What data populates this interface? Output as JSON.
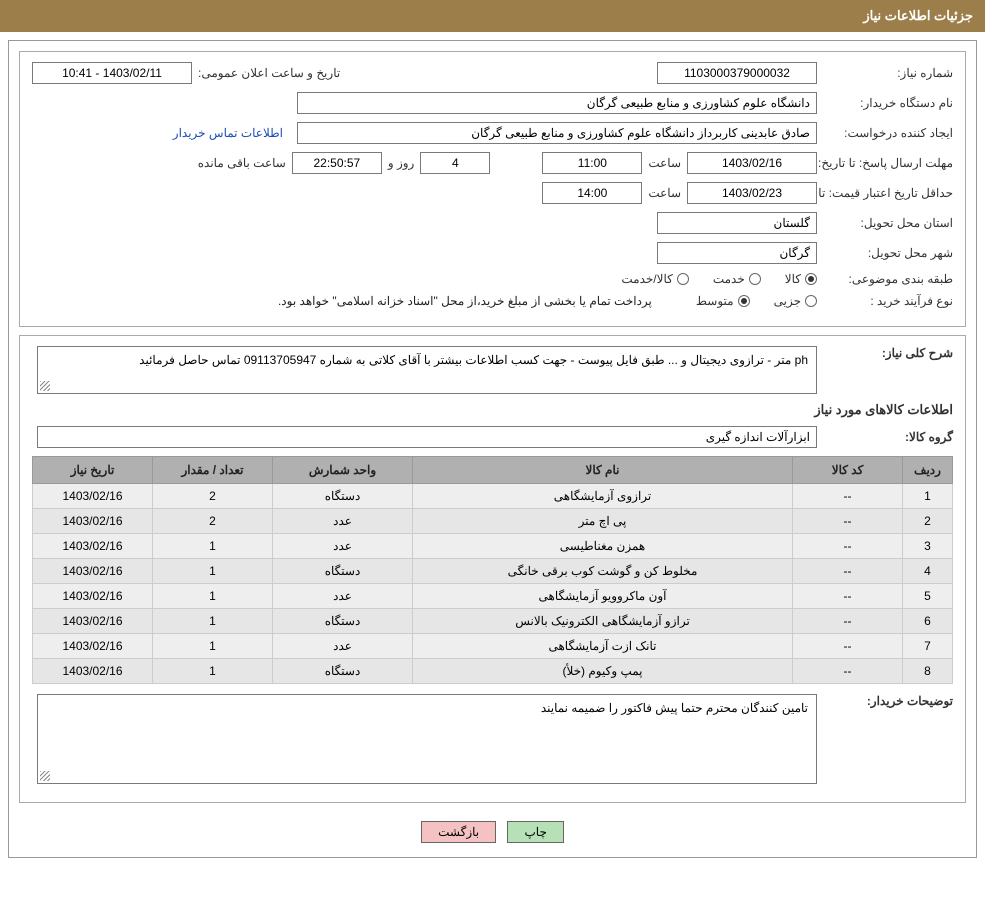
{
  "header": {
    "title": "جزئیات اطلاعات نیاز"
  },
  "info": {
    "need_no_label": "شماره نیاز:",
    "need_no": "1103000379000032",
    "announce_label": "تاریخ و ساعت اعلان عمومی:",
    "announce_value": "1403/02/11 - 10:41",
    "buyer_label": "نام دستگاه خریدار:",
    "buyer_value": "دانشگاه علوم کشاورزی و منابع طبیعی گرگان",
    "requester_label": "ایجاد کننده درخواست:",
    "requester_value": "صادق عابدینی کاربرداز دانشگاه علوم کشاورزی و منابع طبیعی گرگان",
    "contact_link": "اطلاعات تماس خریدار",
    "deadline_label": "مهلت ارسال پاسخ: تا تاریخ:",
    "deadline_date": "1403/02/16",
    "hour_label": "ساعت",
    "deadline_hour": "11:00",
    "days_value": "4",
    "days_text": "روز و",
    "countdown": "22:50:57",
    "remaining_text": "ساعت باقی مانده",
    "validity_label": "حداقل تاریخ اعتبار قیمت: تا تاریخ:",
    "validity_date": "1403/02/23",
    "validity_hour": "14:00",
    "province_label": "استان محل تحویل:",
    "province_value": "گلستان",
    "city_label": "شهر محل تحویل:",
    "city_value": "گرگان",
    "category_label": "طبقه بندی موضوعی:",
    "cat_goods": "کالا",
    "cat_service": "خدمت",
    "cat_goods_service": "کالا/خدمت",
    "process_label": "نوع فرآیند خرید :",
    "proc_partial": "جزیی",
    "proc_medium": "متوسط",
    "process_desc": "پرداخت تمام یا بخشی از مبلغ خرید،از محل \"اسناد خزانه اسلامی\" خواهد بود."
  },
  "need": {
    "desc_label": "شرح کلی نیاز:",
    "desc_text": "ph متر - ترازوی دیجیتال و ... طبق فایل پیوست - جهت کسب اطلاعات بیشتر با آقای کلاتی به شماره 09113705947 تماس حاصل فرمائید",
    "items_title": "اطلاعات کالاهای مورد نیاز",
    "group_label": "گروه کالا:",
    "group_value": "ابزارآلات اندازه گیری"
  },
  "table": {
    "columns": [
      "ردیف",
      "کد کالا",
      "نام کالا",
      "واحد شمارش",
      "تعداد / مقدار",
      "تاریخ نیاز"
    ],
    "rows": [
      [
        "1",
        "--",
        "ترازوی آزمایشگاهی",
        "دستگاه",
        "2",
        "1403/02/16"
      ],
      [
        "2",
        "--",
        "پی اچ متر",
        "عدد",
        "2",
        "1403/02/16"
      ],
      [
        "3",
        "--",
        "همزن مغناطیسی",
        "عدد",
        "1",
        "1403/02/16"
      ],
      [
        "4",
        "--",
        "مخلوط کن و گوشت کوب برقی خانگی",
        "دستگاه",
        "1",
        "1403/02/16"
      ],
      [
        "5",
        "--",
        "آون ماکروویو آزمایشگاهی",
        "عدد",
        "1",
        "1403/02/16"
      ],
      [
        "6",
        "--",
        "ترازو آزمایشگاهی الکترونیک بالانس",
        "دستگاه",
        "1",
        "1403/02/16"
      ],
      [
        "7",
        "--",
        "تانک ازت آزمایشگاهی",
        "عدد",
        "1",
        "1403/02/16"
      ],
      [
        "8",
        "--",
        "پمپ وکیوم (خلأ)",
        "دستگاه",
        "1",
        "1403/02/16"
      ]
    ]
  },
  "buyer_notes": {
    "label": "توضیحات خریدار:",
    "text": "تامین کنندگان محترم حتما پیش فاکتور را ضمیمه نمایند"
  },
  "buttons": {
    "print": "چاپ",
    "back": "بازگشت"
  },
  "colors": {
    "header_bg": "#9b7e4a",
    "th_bg": "#b0b0b0",
    "td_bg": "#eeeeee",
    "btn_green": "#b6e0b6",
    "btn_pink": "#f4c2c2",
    "link": "#1a4db3"
  }
}
